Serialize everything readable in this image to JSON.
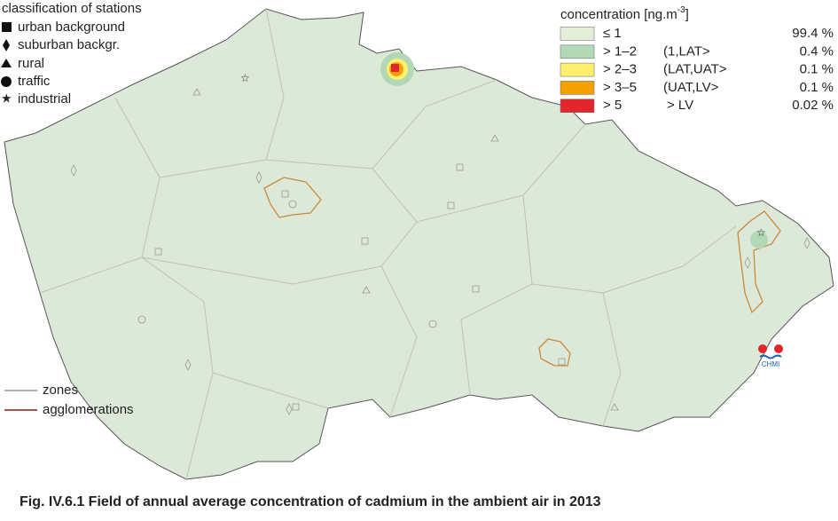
{
  "station_legend": {
    "title": "classification of stations",
    "items": [
      "urban background",
      "suburban backgr.",
      "rural",
      "traffic",
      "industrial"
    ]
  },
  "concentration_legend": {
    "title": "concentration [ng.m",
    "title_superscript": "-3",
    "title_end": "]",
    "rows": [
      {
        "class": "≤ 1",
        "share": "99.4 %",
        "color": "#e4efd9"
      },
      {
        "class": "> 1–2",
        "range": "(1,LAT>",
        "share": "0.4 %",
        "color": "#b3d8b6"
      },
      {
        "class": "> 2–3",
        "range": "(LAT,UAT>",
        "share": "0.1 %",
        "color": "#fdf06e"
      },
      {
        "class": "> 3–5",
        "range": "(UAT,LV>",
        "share": "0.1 %",
        "color": "#f4a100"
      },
      {
        "class": "> 5",
        "range": "> LV",
        "share": "0.02 %",
        "color": "#e3262b"
      }
    ]
  },
  "line_legend": {
    "items": [
      {
        "label": "zones",
        "color": "#999999"
      },
      {
        "label": "agglomerations",
        "color": "#8b1a1a"
      }
    ]
  },
  "logo": "CHMI",
  "caption": "Fig. IV.6.1  Field of annual average concentration of cadmium in the ambient air in 2013"
}
